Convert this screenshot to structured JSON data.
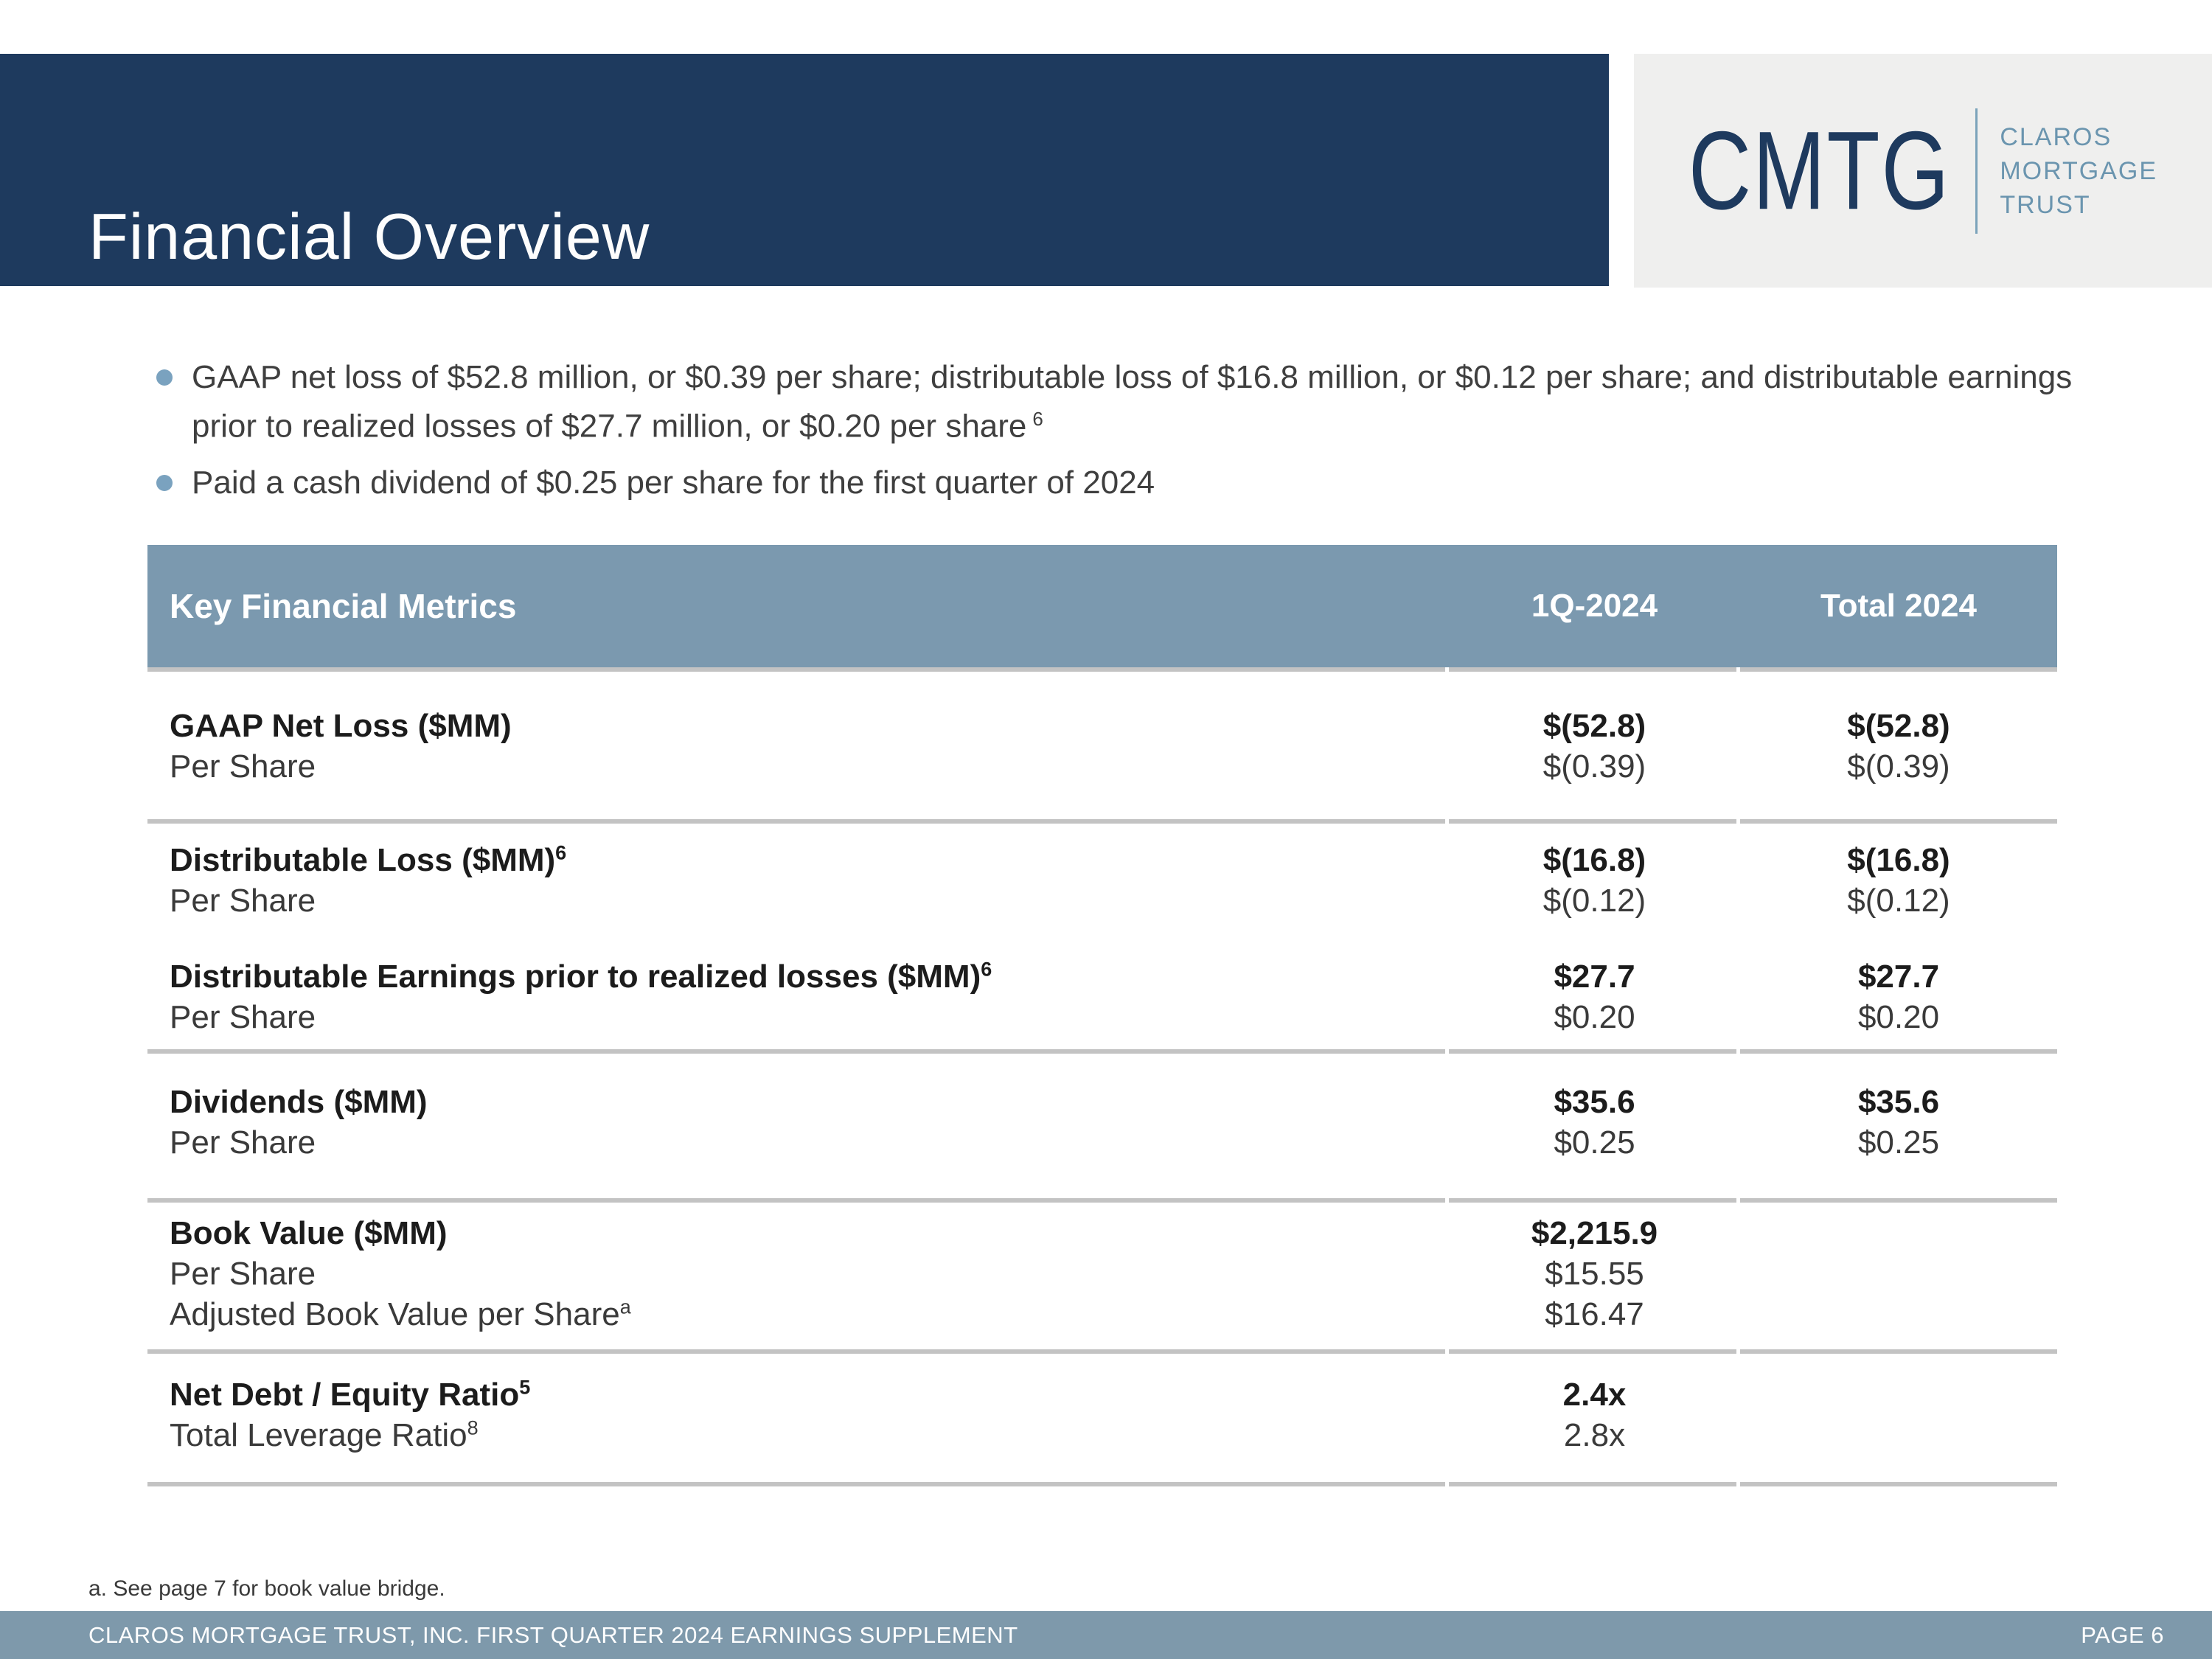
{
  "slide": {
    "title": "Financial Overview",
    "footnote": "a. See page 7 for book value bridge.",
    "footer_left": "CLAROS MORTGAGE TRUST, INC. FIRST QUARTER 2024 EARNINGS SUPPLEMENT",
    "footer_right": "PAGE 6"
  },
  "logo": {
    "ticker": "CMTG",
    "name_line1": "CLAROS",
    "name_line2": "MORTGAGE",
    "name_line3": "TRUST"
  },
  "bullets": [
    {
      "lines": [
        "GAAP net loss of $52.8 million, or $0.39 per share; distributable loss of $16.8 million, or $0.12 per share; and distributable earnings",
        "prior to realized losses of $27.7 million, or $0.20 per share"
      ],
      "sup": "6"
    },
    {
      "lines": [
        "Paid a cash dividend of $0.25 per share for the first quarter of 2024"
      ]
    }
  ],
  "table": {
    "header": {
      "c1": "Key Financial Metrics",
      "c2": "1Q-2024",
      "c3": "Total 2024"
    },
    "groups": [
      {
        "rows": [
          {
            "label": "GAAP Net Loss ($MM)",
            "sup": "",
            "q1": "$(52.8)",
            "total": "$(52.8)"
          },
          {
            "label": "Per Share",
            "sup": "",
            "q1": "$(0.39)",
            "total": "$(0.39)"
          }
        ]
      },
      {
        "rows": [
          {
            "label": "Distributable Loss ($MM)",
            "sup": "6",
            "q1": "$(16.8)",
            "total": "$(16.8)"
          },
          {
            "label": "Per Share",
            "sup": "",
            "q1": "$(0.12)",
            "total": "$(0.12)"
          }
        ]
      },
      {
        "rows": [
          {
            "label": "Distributable Earnings prior to realized losses ($MM)",
            "sup": "6",
            "q1": "$27.7",
            "total": "$27.7"
          },
          {
            "label": "Per Share",
            "sup": "",
            "q1": "$0.20",
            "total": "$0.20"
          }
        ]
      },
      {
        "rows": [
          {
            "label": "Dividends ($MM)",
            "sup": "",
            "q1": "$35.6",
            "total": "$35.6"
          },
          {
            "label": "Per Share",
            "sup": "",
            "q1": "$0.25",
            "total": "$0.25"
          }
        ]
      },
      {
        "rows": [
          {
            "label": "Book Value ($MM)",
            "sup": "",
            "q1": "$2,215.9",
            "total": ""
          },
          {
            "label": "Per Share",
            "sup": "",
            "q1": "$15.55",
            "total": ""
          },
          {
            "label": "Adjusted Book Value per Share",
            "sup": "a",
            "q1": "$16.47",
            "total": ""
          }
        ]
      },
      {
        "rows": [
          {
            "label": "Net Debt / Equity Ratio",
            "sup": "5",
            "q1": "2.4x",
            "total": ""
          },
          {
            "label": "Total Leverage Ratio",
            "sup": "8",
            "q1": "2.8x",
            "total": ""
          }
        ]
      }
    ]
  },
  "colors": {
    "navy": "#1e3a5e",
    "band_blue": "#7b99af",
    "footer_blue": "#7e99ab",
    "bullet_blue": "#7aa2bf",
    "logo_bg": "#efefee",
    "logo_sub_blue": "#6b95af",
    "divider_gray": "#c3c3c3"
  }
}
